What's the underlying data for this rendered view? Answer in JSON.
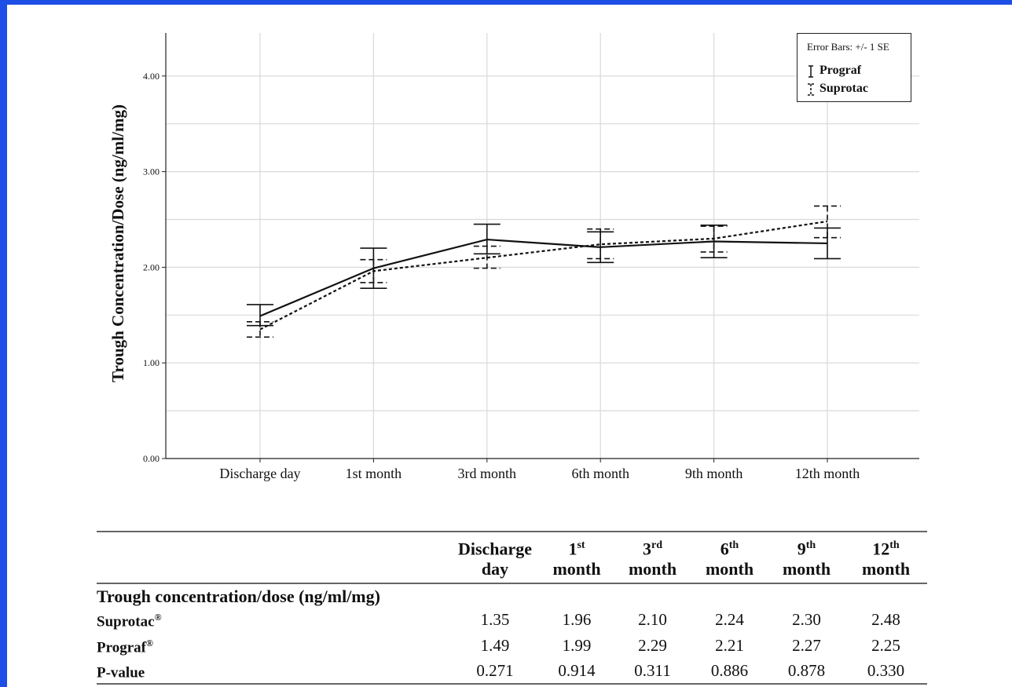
{
  "chart_data": {
    "type": "line",
    "ylabel": "Trough Concentration/Dose (ng/ml/mg)",
    "xlabel": "",
    "categories": [
      "Discharge day",
      "1st month",
      "3rd month",
      "6th month",
      "9th month",
      "12th month"
    ],
    "ylim": [
      0,
      4.45
    ],
    "yticks": [
      "0.00",
      "1.00",
      "2.00",
      "3.00",
      "4.00"
    ],
    "ytick_values": [
      0,
      1,
      2,
      3,
      4
    ],
    "grid": true,
    "legend_title": "Error Bars: +/- 1 SE",
    "legend_position": "top-right",
    "series": [
      {
        "name": "Prograf",
        "style": "solid",
        "color": "#111111",
        "values": [
          1.49,
          1.99,
          2.29,
          2.21,
          2.27,
          2.25
        ],
        "err_low": [
          1.39,
          1.78,
          2.14,
          2.05,
          2.1,
          2.09
        ],
        "err_high": [
          1.61,
          2.2,
          2.45,
          2.37,
          2.44,
          2.41
        ]
      },
      {
        "name": "Suprotac",
        "style": "dotted",
        "color": "#111111",
        "values": [
          1.35,
          1.96,
          2.1,
          2.24,
          2.3,
          2.48
        ],
        "err_low": [
          1.27,
          1.84,
          1.99,
          2.09,
          2.16,
          2.31
        ],
        "err_high": [
          1.43,
          2.08,
          2.22,
          2.4,
          2.43,
          2.64
        ]
      }
    ]
  },
  "legend": {
    "title": "Error Bars: +/- 1 SE",
    "items": [
      "Prograf",
      "Suprotac"
    ]
  },
  "table": {
    "columns": [
      {
        "main": "Discharge",
        "sup": "",
        "second": "day"
      },
      {
        "main": "1",
        "sup": "st",
        "second": "month"
      },
      {
        "main": "3",
        "sup": "rd",
        "second": "month"
      },
      {
        "main": "6",
        "sup": "th",
        "second": "month"
      },
      {
        "main": "9",
        "sup": "th",
        "second": "month"
      },
      {
        "main": "12",
        "sup": "th",
        "second": "month"
      }
    ],
    "section_title": "Trough concentration/dose (ng/ml/mg)",
    "rows": [
      {
        "label": "Suprotac",
        "sup": "®",
        "values": [
          "1.35",
          "1.96",
          "2.10",
          "2.24",
          "2.30",
          "2.48"
        ]
      },
      {
        "label": "Prograf",
        "sup": "®",
        "values": [
          "1.49",
          "1.99",
          "2.29",
          "2.21",
          "2.27",
          "2.25"
        ]
      },
      {
        "label": "P-value",
        "sup": "",
        "values": [
          "0.271",
          "0.914",
          "0.311",
          "0.886",
          "0.878",
          "0.330"
        ]
      }
    ]
  }
}
